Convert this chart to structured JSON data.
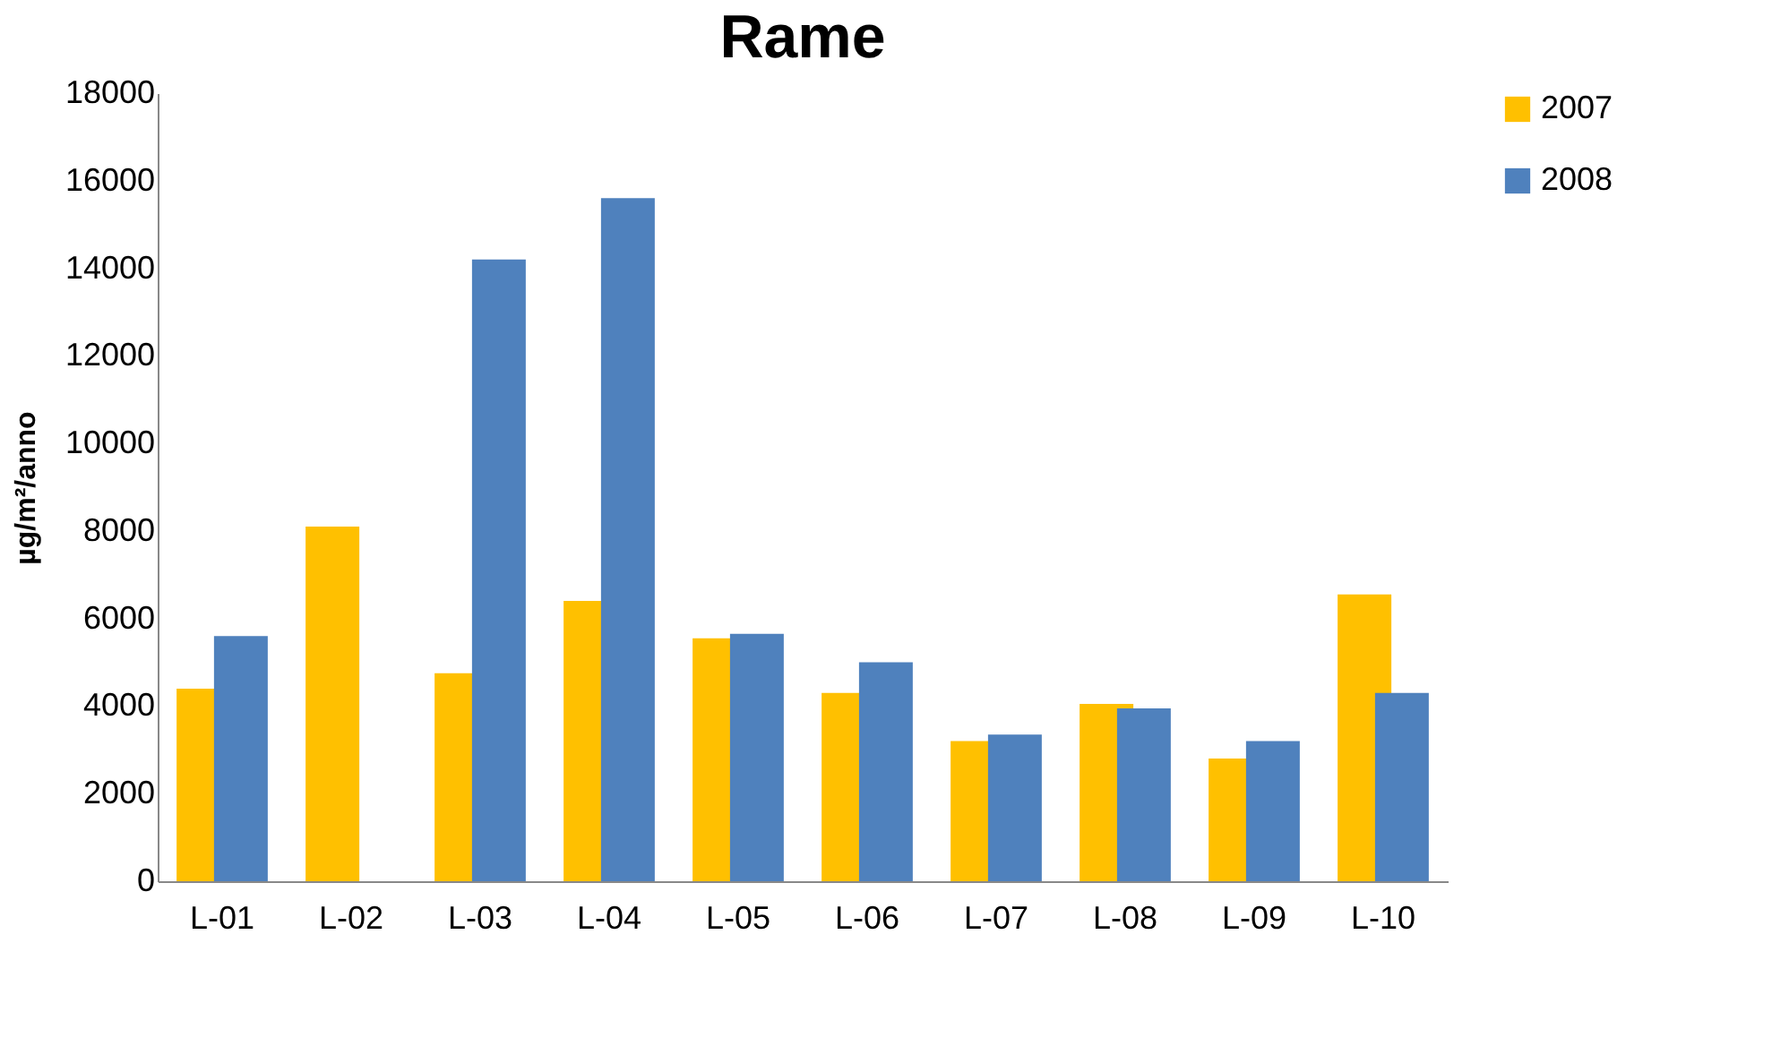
{
  "chart_data": {
    "type": "bar",
    "title": "Rame",
    "ylabel": "µg/m²/anno",
    "categories": [
      "L-01",
      "L-02",
      "L-03",
      "L-04",
      "L-05",
      "L-06",
      "L-07",
      "L-08",
      "L-09",
      "L-10"
    ],
    "series": [
      {
        "name": "2007",
        "color": "#ffc000",
        "values": [
          4400,
          8100,
          4750,
          6400,
          5550,
          4300,
          3200,
          4050,
          2800,
          6550
        ]
      },
      {
        "name": "2008",
        "color": "#4f81bd",
        "values": [
          5600,
          null,
          14200,
          15600,
          5650,
          5000,
          3350,
          3950,
          3200,
          4300
        ]
      }
    ],
    "ylim": [
      0,
      18000
    ],
    "yticks": [
      0,
      2000,
      4000,
      6000,
      8000,
      10000,
      12000,
      14000,
      16000,
      18000
    ],
    "grid": false,
    "legend": "right"
  }
}
